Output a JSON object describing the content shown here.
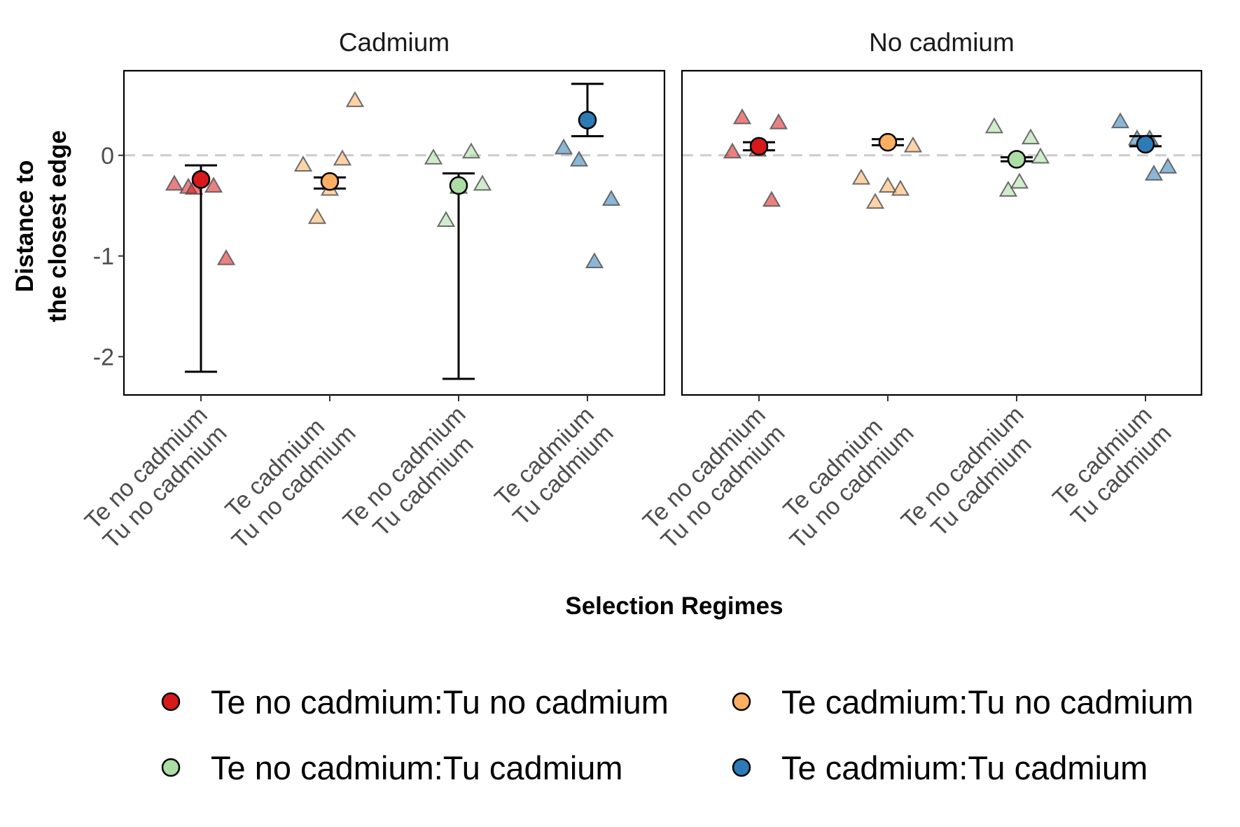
{
  "chart_data": {
    "type": "scatter",
    "facets": [
      "Cadmium",
      "No cadmium"
    ],
    "categories": [
      [
        "Te no cadmium",
        "Tu no cadmium"
      ],
      [
        "Te cadmium",
        "Tu no cadmium"
      ],
      [
        "Te no cadmium",
        "Tu cadmium"
      ],
      [
        "Te cadmium",
        "Tu cadmium"
      ]
    ],
    "xlabel": "Selection Regimes",
    "ylabel": [
      "Distance to",
      "the closest edge"
    ],
    "ylim": [
      -2.38,
      0.84
    ],
    "yticks": [
      0,
      -1,
      -2
    ],
    "yticklabels": [
      "0",
      "-1",
      "-2"
    ],
    "zero_reference_line": true,
    "legend_position": "bottom",
    "series": [
      {
        "name": "Te no cadmium:Tu no cadmium",
        "color": "#d7191c",
        "mean": [
          -0.24,
          0.09
        ],
        "ci": [
          [
            -2.15,
            -0.1
          ],
          [
            0.05,
            0.13
          ]
        ],
        "points": [
          [
            -0.29,
            -0.32,
            -0.33,
            -0.31,
            -1.03
          ],
          [
            0.03,
            0.37,
            0.05,
            -0.45,
            0.32
          ]
        ]
      },
      {
        "name": "Te cadmium:Tu no cadmium",
        "color": "#fdae61",
        "mean": [
          -0.26,
          0.13
        ],
        "ci": [
          [
            -0.33,
            -0.22
          ],
          [
            0.1,
            0.16
          ]
        ],
        "points": [
          [
            -0.1,
            -0.62,
            -0.34,
            -0.04,
            0.54
          ],
          [
            -0.23,
            -0.47,
            -0.31,
            -0.34,
            0.09
          ]
        ]
      },
      {
        "name": "Te no cadmium:Tu cadmium",
        "color": "#abdda4",
        "mean": [
          -0.3,
          -0.04
        ],
        "ci": [
          [
            -2.22,
            -0.18
          ],
          [
            -0.06,
            -0.02
          ]
        ],
        "points": [
          [
            -0.03,
            -0.65,
            -0.32,
            0.03,
            -0.29
          ],
          [
            0.28,
            -0.35,
            -0.27,
            0.17,
            -0.02
          ]
        ]
      },
      {
        "name": "Te cadmium:Tu cadmium",
        "color": "#2c7bb6",
        "mean": [
          0.35,
          0.11
        ],
        "ci": [
          [
            0.19,
            0.71
          ],
          [
            0.09,
            0.19
          ]
        ],
        "points": [
          [
            0.07,
            -0.05,
            -1.06,
            -0.44
          ],
          [
            0.33,
            0.16,
            -0.19,
            -0.12,
            0.16
          ]
        ]
      }
    ]
  }
}
